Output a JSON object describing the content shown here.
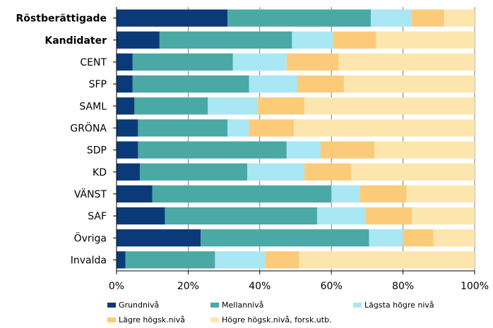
{
  "chart_data": {
    "type": "bar",
    "orientation": "horizontal",
    "stacked": "percent",
    "categories": [
      "Röstberättigade",
      "Kandidater",
      "CENT",
      "SFP",
      "SAML",
      "GRÖNA",
      "SDP",
      "KD",
      "VÄNST",
      "SAF",
      "Övriga",
      "Invalda"
    ],
    "bold_categories": [
      "Röstberättigade",
      "Kandidater"
    ],
    "series": [
      {
        "name": "Grundnivå",
        "color": "#0b3a78",
        "values": [
          31,
          12,
          4.5,
          4.5,
          5,
          6,
          6,
          6.5,
          10,
          13.5,
          23.5,
          2.5
        ]
      },
      {
        "name": "Mellannivå",
        "color": "#4aa8a5",
        "values": [
          40,
          37,
          28,
          32.5,
          20.5,
          25,
          41.5,
          30,
          50,
          42.5,
          47,
          25
        ]
      },
      {
        "name": "Lägsta högre nivå",
        "color": "#a8e7f3",
        "values": [
          11.5,
          11.5,
          15,
          13.5,
          14,
          6,
          9.5,
          16,
          8,
          13.5,
          9.5,
          14
        ]
      },
      {
        "name": "Lägre högsk.nivå",
        "color": "#fbcb7a",
        "values": [
          9,
          12,
          14.5,
          13,
          13,
          12.5,
          15,
          13,
          13,
          13,
          8.5,
          9.5
        ]
      },
      {
        "name": "Högre högsk.nivå, forsk.utb.",
        "color": "#fde6ae",
        "values": [
          8.5,
          27.5,
          38,
          36.5,
          47.5,
          50.5,
          28,
          34.5,
          19,
          17.5,
          11.5,
          49
        ]
      }
    ],
    "xlim": [
      0,
      100
    ],
    "xticks": [
      "0%",
      "20%",
      "40%",
      "60%",
      "80%",
      "100%"
    ],
    "grid": "vertical",
    "legend_position": "bottom"
  }
}
